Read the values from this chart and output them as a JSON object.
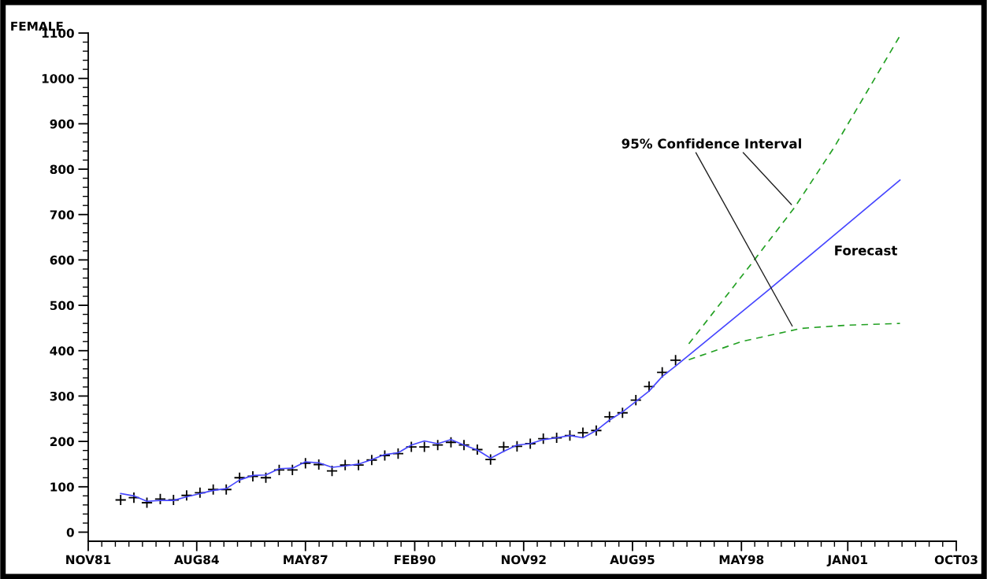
{
  "chart_data": {
    "type": "line",
    "ylabel": "FEMALE",
    "xlim": [
      "1981-11-06",
      "2003-10-02"
    ],
    "xticks": [
      {
        "value": "1981-11-06",
        "label": "NOV81"
      },
      {
        "value": "1984-08-02",
        "label": "AUG84"
      },
      {
        "value": "1987-05-01",
        "label": "MAY87"
      },
      {
        "value": "1990-02-01",
        "label": "FEB90"
      },
      {
        "value": "1992-11-01",
        "label": "NOV92"
      },
      {
        "value": "1995-08-01",
        "label": "AUG95"
      },
      {
        "value": "1998-05-01",
        "label": "MAY98"
      },
      {
        "value": "2001-01-05",
        "label": "JAN01"
      },
      {
        "value": "2003-10-02",
        "label": "OCT03"
      }
    ],
    "ylim": [
      -20,
      1100
    ],
    "yticks": [
      0,
      100,
      200,
      300,
      400,
      500,
      600,
      700,
      800,
      900,
      1000,
      1100
    ],
    "grid": false,
    "series": [
      {
        "type": "scatter",
        "marker": "cross",
        "color": "#000000",
        "x": [
          "1982-09-01",
          "1983-01-01",
          "1983-05-01",
          "1983-09-01",
          "1984-01-01",
          "1984-05-01",
          "1984-09-01",
          "1985-01-01",
          "1985-05-01",
          "1985-09-01",
          "1986-01-01",
          "1986-05-01",
          "1986-09-01",
          "1987-01-01",
          "1987-05-01",
          "1987-09-01",
          "1988-01-01",
          "1988-05-01",
          "1988-09-01",
          "1989-01-01",
          "1989-05-01",
          "1989-09-01",
          "1990-01-01",
          "1990-05-01",
          "1990-09-01",
          "1991-01-01",
          "1991-05-01",
          "1991-09-01",
          "1992-01-01",
          "1992-05-01",
          "1992-09-01",
          "1993-01-01",
          "1993-05-01",
          "1993-09-01",
          "1994-01-01",
          "1994-05-01",
          "1994-09-01",
          "1995-01-01",
          "1995-05-01",
          "1995-09-01",
          "1996-01-01",
          "1996-05-01",
          "1996-09-01"
        ],
        "values": [
          71,
          76,
          65,
          73,
          71,
          81,
          87,
          94,
          94,
          120,
          123,
          120,
          137,
          137,
          152,
          149,
          135,
          148,
          148,
          159,
          169,
          173,
          188,
          188,
          192,
          198,
          192,
          182,
          160,
          188,
          189,
          195,
          206,
          208,
          213,
          219,
          224,
          254,
          263,
          291,
          321,
          352,
          379
        ]
      },
      {
        "marker": "none",
        "line_style": "solid",
        "color": "#4646ff",
        "x": [
          "1982-09-01",
          "1983-01-01",
          "1983-05-01",
          "1983-09-01",
          "1984-01-01",
          "1984-05-01",
          "1984-09-01",
          "1985-01-01",
          "1985-05-01",
          "1985-09-01",
          "1986-01-01",
          "1986-05-01",
          "1986-09-01",
          "1987-01-01",
          "1987-05-01",
          "1987-09-01",
          "1988-01-01",
          "1988-05-01",
          "1988-09-01",
          "1989-01-01",
          "1989-05-01",
          "1989-09-01",
          "1990-01-01",
          "1990-05-01",
          "1990-09-01",
          "1991-01-01",
          "1991-05-01",
          "1991-09-01",
          "1992-01-01",
          "1992-05-01",
          "1992-09-01",
          "1993-01-01",
          "1993-05-01",
          "1993-09-01",
          "1994-01-01",
          "1994-05-01",
          "1994-09-01",
          "1995-01-01",
          "1995-05-01",
          "1995-09-01",
          "1996-01-01",
          "1996-05-01",
          "1996-09-01",
          "1999-01-01",
          "2000-07-01",
          "2002-05-01"
        ],
        "values": [
          85,
          80,
          68,
          70,
          70,
          78,
          85,
          92,
          96,
          115,
          125,
          126,
          140,
          141,
          155,
          153,
          143,
          146,
          150,
          160,
          171,
          175,
          192,
          201,
          195,
          204,
          192,
          181,
          163,
          178,
          192,
          195,
          204,
          208,
          213,
          208,
          224,
          247,
          265,
          288,
          311,
          343,
          366,
          533,
          642,
          776
        ]
      },
      {
        "marker": "none",
        "line_style": "dashed",
        "color": "#22a022",
        "x": [
          "1997-01-01",
          "1998-07-01",
          "1999-09-01",
          "2000-09-01",
          "2001-05-01",
          "2002-05-01"
        ],
        "values": [
          415,
          582,
          715,
          848,
          946,
          1094
        ]
      },
      {
        "marker": "none",
        "line_style": "dashed",
        "color": "#22a022",
        "x": [
          "1997-01-01",
          "1998-05-01",
          "1999-11-01",
          "2000-12-15",
          "2002-05-01"
        ],
        "values": [
          380,
          420,
          449,
          456,
          460
        ]
      }
    ],
    "annotations": [
      {
        "text": "95% Confidence Interval",
        "x": "1999-09-01",
        "y": 715
      },
      {
        "text": "Forecast",
        "x": "2000-07-01",
        "y": 642
      }
    ]
  }
}
